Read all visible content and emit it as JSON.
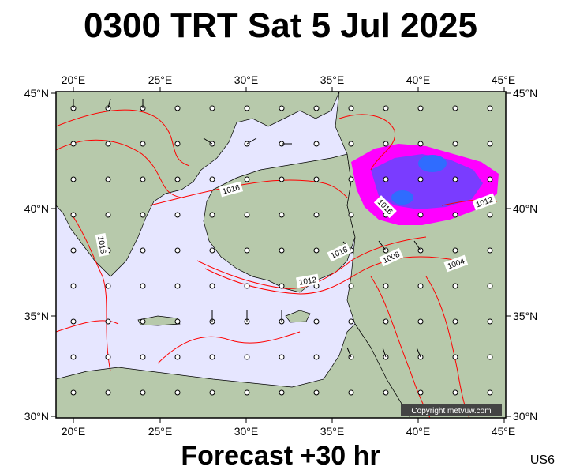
{
  "title": "0300 TRT Sat 5 Jul 2025",
  "footer": "Forecast +30 hr",
  "corner_code": "US6",
  "copyright": "Copyright metvuw.com",
  "map": {
    "lon_range": [
      19,
      45
    ],
    "lat_range": [
      30,
      45
    ],
    "lon_ticks": [
      "20°E",
      "25°E",
      "30°E",
      "35°E",
      "40°E",
      "45°E"
    ],
    "lat_ticks": [
      "45°N",
      "40°N",
      "35°N",
      "30°N"
    ],
    "isobar_labels": [
      "1016",
      "1016",
      "1016",
      "1016",
      "1012",
      "1012",
      "1008",
      "1004"
    ],
    "colors": {
      "sea": "#e6e6ff",
      "land": "#b7c9ab",
      "isobar": "#ff0000",
      "rain_light": "#ff00ff",
      "rain_medium": "#7a3cff",
      "rain_heavy": "#2f6cff"
    }
  }
}
